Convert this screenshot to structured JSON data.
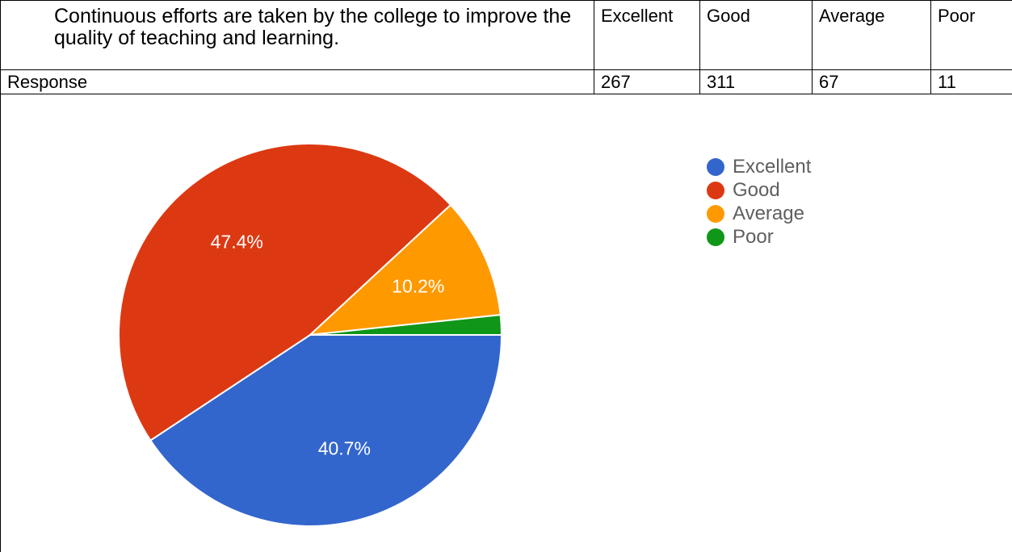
{
  "table": {
    "question": "Continuous efforts are taken by the college to improve the quality of teaching and learning.",
    "headers": [
      "Excellent",
      "Good",
      "Average",
      "Poor"
    ],
    "row_label": "Response",
    "values": [
      "267",
      "311",
      "67",
      "11"
    ]
  },
  "chart_data": {
    "type": "pie",
    "categories": [
      "Excellent",
      "Good",
      "Average",
      "Poor"
    ],
    "values": [
      267,
      311,
      67,
      11
    ],
    "slice_labels": [
      "40.7%",
      "47.4%",
      "10.2%",
      ""
    ],
    "colors": [
      "#3366cc",
      "#dc3912",
      "#ff9900",
      "#109618"
    ],
    "legend_position": "right"
  }
}
